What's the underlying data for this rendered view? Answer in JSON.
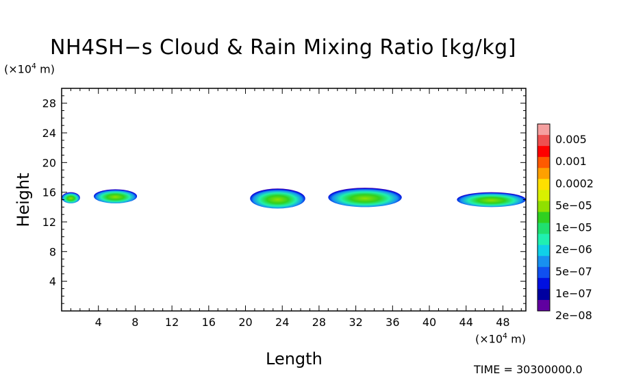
{
  "chart_data": {
    "type": "heatmap",
    "title": "NH4SH−s Cloud & Rain Mixing Ratio [kg/kg]",
    "xlabel": "Length",
    "ylabel": "Height",
    "x_unit_prefix": "(×10",
    "x_unit_exp": "4",
    "x_unit_suffix": " m)",
    "y_unit_prefix": "(×10",
    "y_unit_exp": "4",
    "y_unit_suffix": " m)",
    "xlim": [
      0,
      50.5
    ],
    "ylim": [
      0,
      30
    ],
    "x_ticks": [
      4,
      8,
      12,
      16,
      20,
      24,
      28,
      32,
      36,
      40,
      44,
      48
    ],
    "y_ticks": [
      4,
      8,
      12,
      16,
      20,
      24,
      28
    ],
    "colorbar": {
      "labels": [
        "0.005",
        "0.001",
        "0.0002",
        "5e−05",
        "1e−05",
        "2e−06",
        "5e−07",
        "1e−07",
        "2e−08"
      ],
      "colors": [
        "#f5a0a0",
        "#ee5050",
        "#ff0000",
        "#ff5a00",
        "#ffa000",
        "#ffe000",
        "#d8f000",
        "#90e000",
        "#30d020",
        "#20e070",
        "#20f0b0",
        "#10d0e8",
        "#1890f0",
        "#1050f0",
        "#0010e0",
        "#0000a0",
        "#6000a0"
      ]
    },
    "cloud_regions": [
      {
        "x": [
          0,
          2
        ],
        "y": [
          14.5,
          16
        ]
      },
      {
        "x": [
          3.5,
          8.2
        ],
        "y": [
          14.5,
          16.4
        ]
      },
      {
        "x": [
          20.5,
          26.5
        ],
        "y": [
          13.8,
          16.5
        ]
      },
      {
        "x": [
          29,
          37
        ],
        "y": [
          14,
          16.6
        ]
      },
      {
        "x": [
          43,
          50.5
        ],
        "y": [
          14,
          16
        ]
      }
    ],
    "time_label": "TIME = 30300000.0"
  }
}
